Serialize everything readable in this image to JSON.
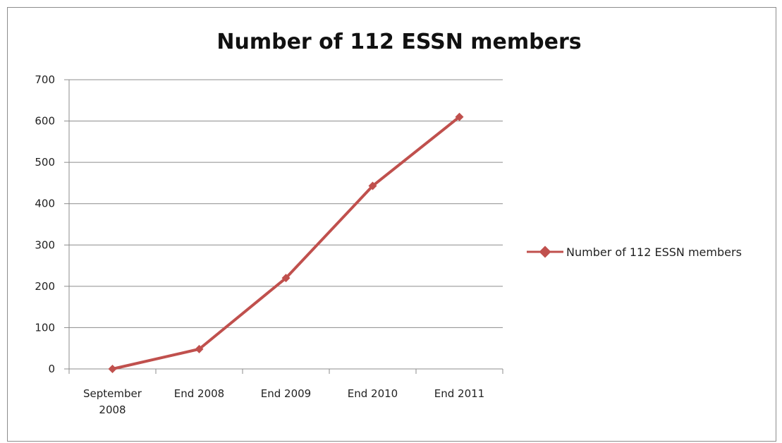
{
  "chart_data": {
    "type": "line",
    "title": "Number of 112 ESSN members",
    "xlabel": "",
    "ylabel": "",
    "categories": [
      [
        "September",
        "2008"
      ],
      [
        "End 2008"
      ],
      [
        "End 2009"
      ],
      [
        "End 2010"
      ],
      [
        "End 2011"
      ]
    ],
    "series": [
      {
        "name": "Number of 112 ESSN members",
        "values": [
          0,
          48,
          220,
          443,
          610
        ]
      }
    ],
    "ylim": [
      0,
      700
    ],
    "yticks": [
      "0",
      "100",
      "200",
      "300",
      "400",
      "500",
      "600",
      "700"
    ],
    "grid": true,
    "legend": "right",
    "colors": {
      "series": "#c0504d",
      "grid": "#8c8c8c",
      "axis": "#8c8c8c"
    }
  }
}
